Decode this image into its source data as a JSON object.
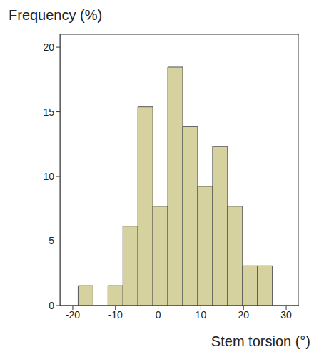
{
  "chart_data": {
    "type": "histogram",
    "x_label": "Stem torsion (°)",
    "y_label": "Frequency (%)",
    "bins": [
      -18.75,
      -15.25,
      -11.75,
      -8.25,
      -4.75,
      -1.25,
      2.25,
      5.75,
      9.25,
      12.75,
      16.25,
      19.75,
      23.25,
      26.75
    ],
    "values": [
      1.54,
      0,
      1.54,
      6.15,
      15.38,
      7.69,
      18.46,
      13.85,
      9.23,
      12.31,
      7.69,
      3.08,
      3.08
    ],
    "color": "#d6d29f",
    "xlim": [
      -23,
      33
    ],
    "xticks": [
      -20,
      -10,
      0,
      10,
      20,
      30
    ],
    "ylim": [
      0,
      21
    ],
    "yticks": [
      0,
      5,
      10,
      15,
      20
    ],
    "grid": false
  }
}
